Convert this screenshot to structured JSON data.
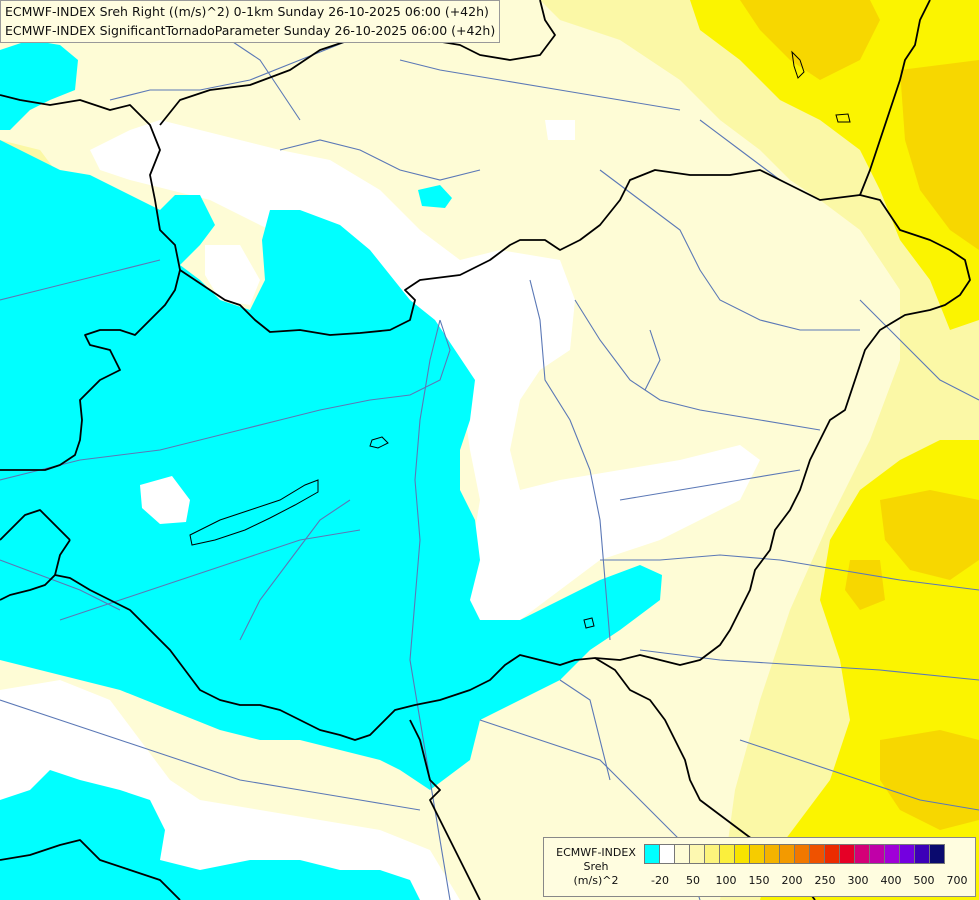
{
  "titles": {
    "line1": "ECMWF-INDEX Sreh Right ((m/s)^2) 0-1km Sunday 26-10-2025 06:00 (+42h)",
    "line2": "ECMWF-INDEX SignificantTornadoParameter Sunday 26-10-2025 06:00 (+42h)"
  },
  "legend": {
    "line1": "ECMWF-INDEX",
    "line2": "Sreh",
    "line3": "(m/s)^2",
    "colors": [
      "#00ffff",
      "#ffffff",
      "#fefcd6",
      "#fdf8b0",
      "#fcf47c",
      "#fbef3c",
      "#f8e300",
      "#f6cc00",
      "#f4b300",
      "#f39a00",
      "#f17800",
      "#ef5200",
      "#ec2b00",
      "#e60026",
      "#d40077",
      "#c000a8",
      "#a000d8",
      "#7400e0",
      "#3c00b8",
      "#0a0a6e"
    ],
    "ticks": [
      "-20",
      "50",
      "100",
      "150",
      "200",
      "250",
      "300",
      "400",
      "500",
      "700"
    ]
  },
  "colors": {
    "cyan": "#00ffff",
    "white": "#ffffff",
    "pale": "#fefcd6",
    "light_yellow": "#fbf8a6",
    "yellow": "#fbf400",
    "gold": "#f7d700",
    "border": "#000000",
    "river": "#5b78b6"
  }
}
